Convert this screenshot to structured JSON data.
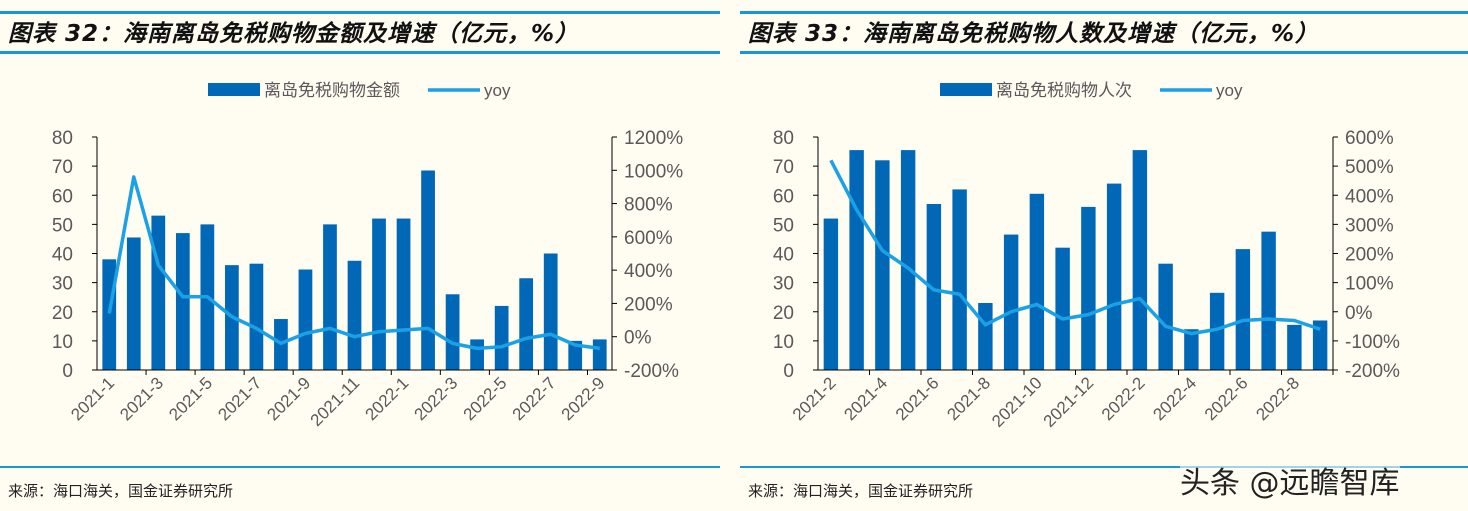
{
  "colors": {
    "bar": "#0068b7",
    "line": "#1aa1e6",
    "rule": "#1a96d4",
    "axis": "#000000"
  },
  "watermark": "头条 @远瞻智库",
  "chart_data": [
    {
      "type": "bar",
      "title": "图表 32：海南离岛免税购物金额及增速（亿元，%）",
      "source": "来源：海口海关，国金证券研究所",
      "legend_placement": "top-center",
      "categories": [
        "2021-1",
        "2021-2",
        "2021-3",
        "2021-4",
        "2021-5",
        "2021-6",
        "2021-7",
        "2021-8",
        "2021-9",
        "2021-10",
        "2021-11",
        "2021-12",
        "2022-1",
        "2022-2",
        "2022-3",
        "2022-4",
        "2022-5",
        "2022-6",
        "2022-7",
        "2022-8",
        "2022-9"
      ],
      "tick_labels": [
        "2021-1",
        "2021-3",
        "2021-5",
        "2021-7",
        "2021-9",
        "2021-11",
        "2022-1",
        "2022-3",
        "2022-5",
        "2022-7",
        "2022-9"
      ],
      "ylim": [
        0,
        80
      ],
      "yticks": [
        0,
        10,
        20,
        30,
        40,
        50,
        60,
        70,
        80
      ],
      "y2lim": [
        -200,
        1200
      ],
      "y2ticks": [
        "-200%",
        "0%",
        "200%",
        "400%",
        "600%",
        "800%",
        "1000%",
        "1200%"
      ],
      "series": [
        {
          "name": "离岛免税购物金额",
          "type": "bar",
          "axis": "left",
          "values": [
            38,
            45.5,
            53,
            47,
            50,
            36,
            36.5,
            17.5,
            34.5,
            50,
            37.5,
            52,
            52,
            68.5,
            26,
            10.5,
            22,
            31.5,
            40,
            10,
            10.5
          ]
        },
        {
          "name": "yoy",
          "type": "line",
          "axis": "right",
          "values": [
            140,
            960,
            430,
            240,
            240,
            120,
            50,
            -40,
            20,
            50,
            0,
            30,
            40,
            50,
            -40,
            -70,
            -60,
            -10,
            15,
            -50,
            -70
          ]
        }
      ]
    },
    {
      "type": "bar",
      "title": "图表 33：海南离岛免税购物人数及增速（亿元，%）",
      "source": "来源：海口海关，国金证券研究所",
      "legend_placement": "top-center",
      "categories": [
        "2021-2",
        "2021-3",
        "2021-4",
        "2021-5",
        "2021-6",
        "2021-7",
        "2021-8",
        "2021-9",
        "2021-10",
        "2021-11",
        "2021-12",
        "2022-1",
        "2022-2",
        "2022-3",
        "2022-4",
        "2022-5",
        "2022-6",
        "2022-7",
        "2022-8",
        "2022-9"
      ],
      "tick_labels": [
        "2021-2",
        "2021-4",
        "2021-6",
        "2021-8",
        "2021-10",
        "2021-12",
        "2022-2",
        "2022-4",
        "2022-6",
        "2022-8"
      ],
      "ylim": [
        0,
        80
      ],
      "yticks": [
        0,
        10,
        20,
        30,
        40,
        50,
        60,
        70,
        80
      ],
      "y2lim": [
        -200,
        600
      ],
      "y2ticks": [
        "-200%",
        "-100%",
        "0%",
        "100%",
        "200%",
        "300%",
        "400%",
        "500%",
        "600%"
      ],
      "series": [
        {
          "name": "离岛免税购物人次",
          "type": "bar",
          "axis": "left",
          "values": [
            52,
            75.5,
            72,
            75.5,
            57,
            62,
            23,
            46.5,
            60.5,
            42,
            56,
            64,
            75.5,
            36.5,
            14,
            26.5,
            41.5,
            47.5,
            15.5,
            17
          ]
        },
        {
          "name": "yoy",
          "type": "line",
          "axis": "right",
          "values": [
            520,
            350,
            210,
            150,
            75,
            60,
            -45,
            0,
            25,
            -25,
            -10,
            25,
            45,
            -50,
            -75,
            -60,
            -30,
            -25,
            -30,
            -60
          ]
        }
      ]
    }
  ]
}
